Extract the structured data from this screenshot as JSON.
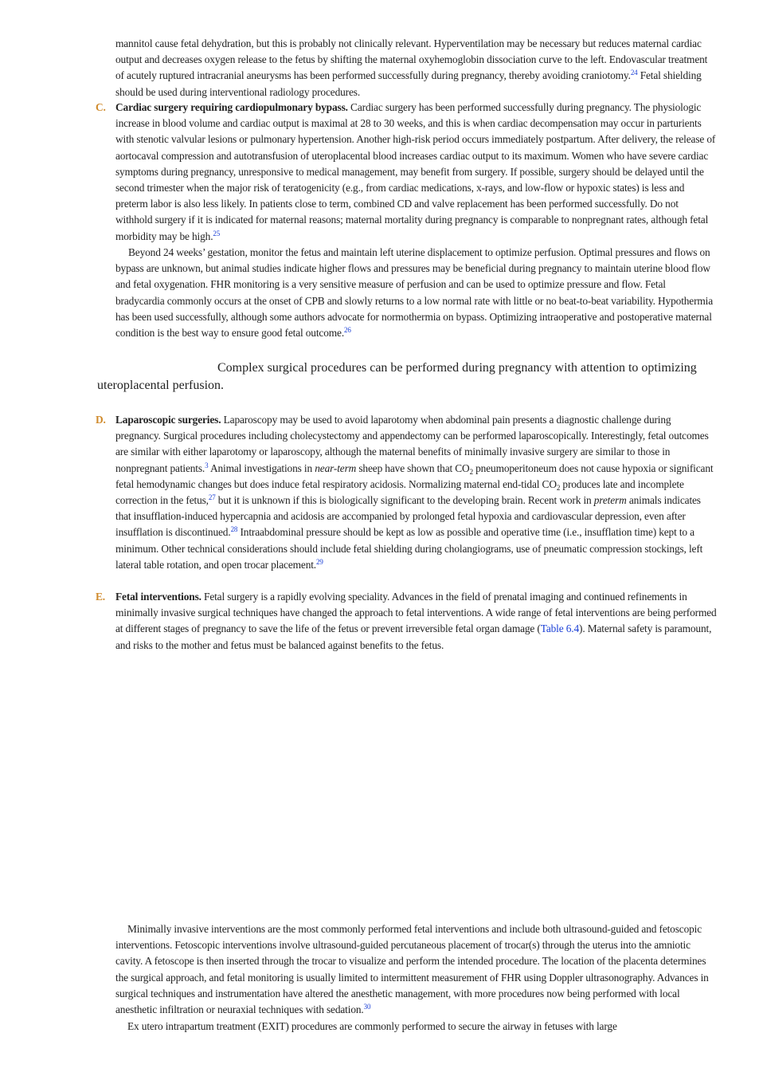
{
  "paragraphs": [
    {
      "parts": [
        "mannitol cause fetal dehydration, but this is probably not clinically relevant. Hyperventilation may be necessary but reduces maternal cardiac output and decreases oxygen release to the fetus by shifting the maternal oxyhemoglobin dissociation curve to the left. Endovascular treatment of acutely ruptured intracranial aneurysms has been performed successfully during pregnancy, thereby avoiding craniotomy.",
        {
          "sup": "24"
        },
        " Fetal shielding should be used during interventional radiology procedures."
      ]
    },
    {
      "parts": [
        {
          "label": "C."
        },
        {
          "b": "Cardiac surgery requiring cardiopulmonary bypass."
        },
        " Cardiac surgery has been performed successfully during pregnancy. The physiologic increase in blood volume and cardiac output is maximal at 28 to 30 weeks, and this is when cardiac decompensation may occur in parturients with stenotic valvular lesions or pulmonary hypertension. Another high-risk period occurs immediately postpartum. After delivery, the release of aortocaval compression and autotransfusion of uteroplacental blood increases cardiac output to its maximum. Women who have severe cardiac symptoms during pregnancy, unresponsive to medical management, may benefit from surgery. If possible, surgery should be delayed until the second trimester when the major risk of teratogenicity (e.g., from cardiac medications, x-rays, and low-flow or hypoxic states) is less and preterm labor is also less likely. In patients close to term, combined CD and valve replacement has been performed successfully. Do not withhold surgery if it is indicated for maternal reasons; maternal mortality during pregnancy is comparable to nonpregnant rates, although fetal morbidity may be high.",
        {
          "sup": "25"
        }
      ]
    },
    {
      "parts": [
        "Beyond 24 weeks’ gestation, monitor the fetus and maintain left uterine displacement to optimize perfusion. Optimal pressures and flows on bypass are unknown, but animal studies indicate higher flows and pressures may be beneficial during pregnancy to maintain uterine blood flow and fetal oxygenation. FHR monitoring is a very sensitive measure of perfusion and can be used to optimize pressure and flow. Fetal bradycardia commonly occurs at the onset of CPB and slowly returns to a low normal rate with little or no beat-to-beat variability. Hypothermia has been used successfully, although some authors advocate for normothermia on bypass. Optimizing intraoperative and postoperative maternal condition is the best way to ensure good fetal outcome.",
        {
          "sup": "26"
        }
      ]
    },
    {
      "parts": [
        {
          "label": "D."
        },
        {
          "b": "Laparoscopic surgeries."
        },
        " Laparoscopy may be used to avoid laparotomy when abdominal pain presents a diagnostic challenge during pregnancy. Surgical procedures including cholecystectomy and appendectomy can be performed laparoscopically. Interestingly, fetal outcomes are similar with either laparotomy or laparoscopy, although the maternal benefits of minimally invasive surgery are similar to those in nonpregnant patients.",
        {
          "sup": "3"
        },
        " Animal investigations in ",
        {
          "i": "near-term"
        },
        " sheep have shown that CO",
        {
          "sub": "2"
        },
        " pneumoperitoneum does not cause hypoxia or significant fetal hemodynamic changes but does induce fetal respiratory acidosis. Normalizing maternal end-tidal CO",
        {
          "sub": "2"
        },
        " produces late and incomplete correction in the fetus,",
        {
          "sup": "27"
        },
        " but it is unknown if this is biologically significant to the developing brain. Recent work in ",
        {
          "i": "preterm"
        },
        " animals indicates that insufflation-induced hypercapnia and acidosis are accompanied by prolonged fetal hypoxia and cardiovascular depression, even after insufflation is discontinued.",
        {
          "sup": "28"
        },
        " Intraabdominal pressure should be kept as low as possible and operative time (i.e., insufflation time) kept to a minimum. Other technical considerations should include fetal shielding during cholangiograms, use of pneumatic compression stockings, left lateral table rotation, and open trocar placement.",
        {
          "sup": "29"
        }
      ]
    },
    {
      "parts": [
        {
          "label": "E."
        },
        {
          "b": "Fetal interventions."
        },
        " Fetal surgery is a rapidly evolving speciality. Advances in the field of prenatal imaging and continued refinements in minimally invasive surgical techniques have changed the approach to fetal interventions. A wide range of fetal interventions are being performed at different stages of pregnancy to save the life of the fetus or prevent irreversible fetal organ damage (",
        {
          "link": "Table 6.4"
        },
        "). Maternal safety is paramount, and risks to the mother and fetus must be balanced against benefits to the fetus."
      ]
    },
    {
      "parts": [
        "Minimally invasive interventions are the most commonly performed fetal interventions and include both ultrasound-guided and fetoscopic interventions. Fetoscopic interventions involve ultrasound-guided percutaneous placement of trocar(s) through the uterus into the amniotic cavity. A fetoscope is then inserted through the trocar to visualize and perform the intended procedure. The location of the placenta determines the surgical approach, and fetal monitoring is usually limited to intermittent measurement of FHR using Doppler ultrasonography. Advances in surgical techniques and instrumentation have altered the anesthetic management, with more procedures now being performed with local anesthetic infiltration or neuraxial techniques with sedation.",
        {
          "sup": "30"
        }
      ]
    },
    {
      "parts": [
        "Ex utero intrapartum treatment (EXIT) procedures are commonly performed to secure the airway in fetuses with large"
      ]
    }
  ],
  "pull_quote": "Complex surgical procedures can be performed during pregnancy with attention to optimizing uteroplacental perfusion."
}
